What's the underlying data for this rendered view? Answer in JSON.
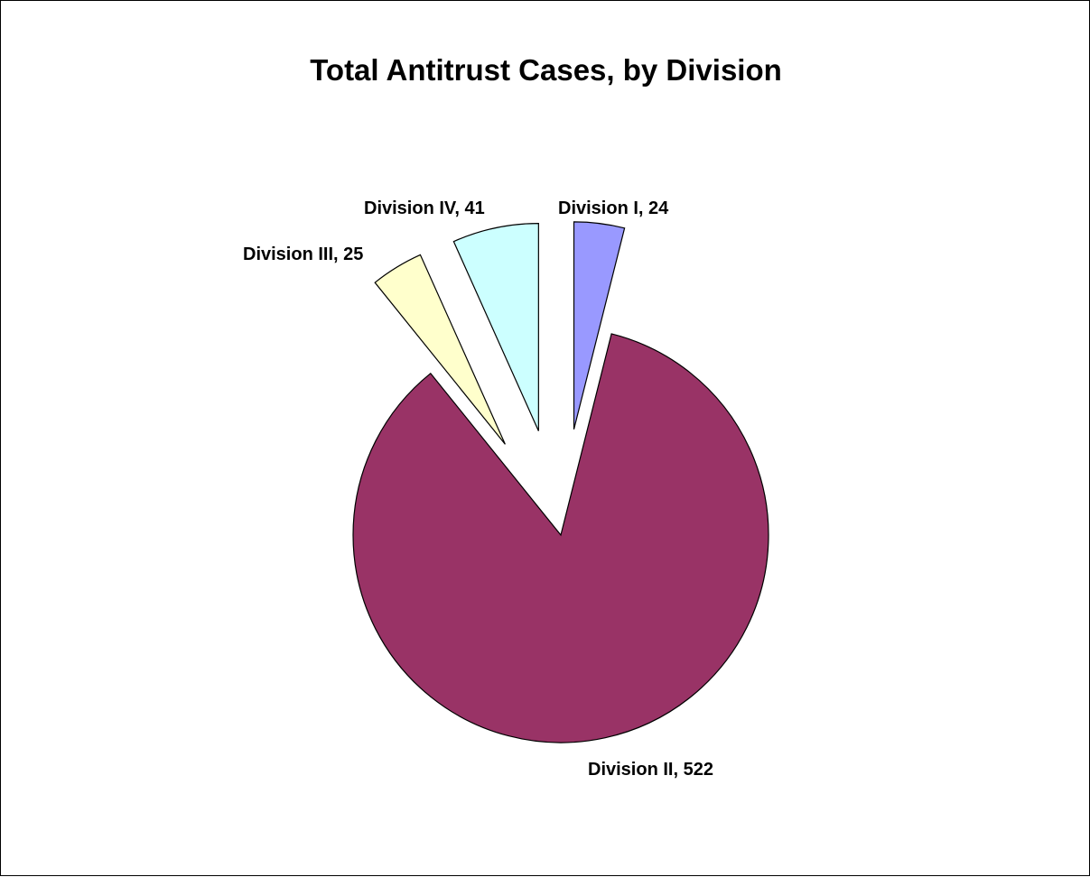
{
  "chart_data": {
    "type": "pie",
    "title": "Total Antitrust Cases, by Division",
    "slices": [
      {
        "label": "Division I",
        "value": 24,
        "color": "#9999FF",
        "exploded": true,
        "data_label": "Division I, 24"
      },
      {
        "label": "Division II",
        "value": 522,
        "color": "#993366",
        "exploded": false,
        "data_label": "Division II, 522"
      },
      {
        "label": "Division III",
        "value": 25,
        "color": "#FFFFCC",
        "exploded": true,
        "data_label": "Division III, 25"
      },
      {
        "label": "Division IV",
        "value": 41,
        "color": "#CCFFFF",
        "exploded": true,
        "data_label": "Division IV, 41"
      }
    ],
    "start_angle": "12 o'clock",
    "direction": "clockwise",
    "legend": "none",
    "data_labels": "category name and value"
  }
}
